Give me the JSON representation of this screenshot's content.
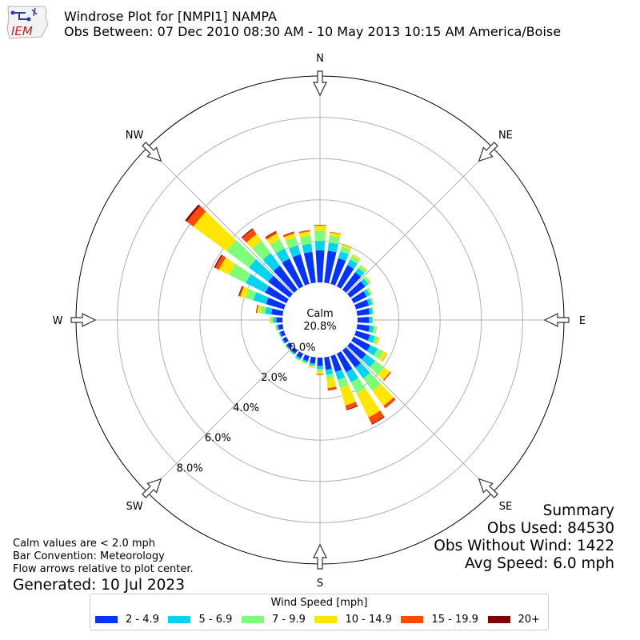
{
  "logo": {
    "text": "IEM"
  },
  "title_line1": "Windrose Plot for [NMPI1] NAMPA",
  "title_line2": "Obs Between: 07 Dec 2010 08:30 AM - 10 May 2013 10:15 AM America/Boise",
  "calm": {
    "label": "Calm",
    "value": "20.8%"
  },
  "summary": {
    "heading": "Summary",
    "obs_used": "Obs Used: 84530",
    "obs_without_wind": "Obs Without Wind: 1422",
    "avg_speed": "Avg Speed: 6.0 mph"
  },
  "notes": {
    "calm_note": "Calm values are < 2.0 mph",
    "bar_convention": "Bar Convention: Meteorology",
    "flow_arrows": "Flow arrows relative to plot center.",
    "generated": "Generated: 10 Jul 2023"
  },
  "legend": {
    "title": "Wind Speed [mph]",
    "items": [
      {
        "label": "2 - 4.9",
        "color": "#0433ff"
      },
      {
        "label": "5 - 6.9",
        "color": "#00d4f0"
      },
      {
        "label": "7 - 9.9",
        "color": "#7dfd7a"
      },
      {
        "label": "10 - 14.9",
        "color": "#ffe600"
      },
      {
        "label": "15 - 19.9",
        "color": "#ff4a00"
      },
      {
        "label": "20+",
        "color": "#800000"
      }
    ]
  },
  "chart_data": {
    "type": "windrose",
    "calm_percent": 20.8,
    "radial_ticks": [
      0,
      2,
      4,
      6,
      8
    ],
    "radial_tick_labels": [
      "0.0%",
      "2.0%",
      "4.0%",
      "6.0%",
      "8.0%"
    ],
    "radial_max": 10,
    "direction_labels": [
      "N",
      "NE",
      "E",
      "SE",
      "S",
      "SW",
      "W",
      "NW"
    ],
    "bin_width_degrees": 10,
    "directions": [
      0,
      10,
      20,
      30,
      40,
      50,
      60,
      70,
      80,
      90,
      100,
      110,
      120,
      130,
      140,
      150,
      160,
      170,
      180,
      190,
      200,
      210,
      220,
      230,
      240,
      250,
      260,
      270,
      280,
      290,
      300,
      310,
      320,
      330,
      340,
      350
    ],
    "series": [
      {
        "name": "2 - 4.9",
        "values": [
          1.55,
          1.55,
          1.3,
          1.15,
          1.05,
          0.9,
          0.7,
          0.65,
          0.6,
          0.55,
          0.6,
          0.7,
          0.9,
          0.95,
          1.05,
          1.0,
          0.8,
          0.6,
          0.4,
          0.3,
          0.25,
          0.25,
          0.2,
          0.2,
          0.2,
          0.2,
          0.22,
          0.3,
          0.55,
          0.9,
          1.15,
          1.3,
          1.45,
          1.5,
          1.5,
          1.5
        ]
      },
      {
        "name": "5 - 6.9",
        "values": [
          0.45,
          0.4,
          0.35,
          0.3,
          0.25,
          0.2,
          0.18,
          0.17,
          0.15,
          0.15,
          0.2,
          0.25,
          0.4,
          0.55,
          0.65,
          0.55,
          0.4,
          0.25,
          0.15,
          0.1,
          0.08,
          0.08,
          0.06,
          0.05,
          0.05,
          0.05,
          0.08,
          0.15,
          0.3,
          0.65,
          1.05,
          1.15,
          0.75,
          0.55,
          0.45,
          0.4
        ]
      },
      {
        "name": "7 - 9.9",
        "values": [
          0.5,
          0.35,
          0.25,
          0.2,
          0.15,
          0.1,
          0.08,
          0.07,
          0.05,
          0.05,
          0.1,
          0.15,
          0.3,
          0.55,
          0.75,
          0.6,
          0.4,
          0.2,
          0.1,
          0.05,
          0.05,
          0.05,
          0.04,
          0.03,
          0.03,
          0.03,
          0.05,
          0.1,
          0.25,
          0.4,
          0.9,
          1.35,
          0.75,
          0.5,
          0.4,
          0.4
        ]
      },
      {
        "name": "10 - 14.9",
        "values": [
          0.25,
          0.15,
          0.1,
          0.08,
          0.05,
          0.04,
          0.03,
          0.02,
          0.02,
          0.03,
          0.04,
          0.08,
          0.2,
          0.35,
          0.9,
          1.3,
          0.9,
          0.45,
          0.15,
          0.05,
          0.03,
          0.02,
          0.01,
          0.01,
          0.01,
          0.01,
          0.02,
          0.05,
          0.15,
          0.25,
          0.55,
          2.0,
          0.4,
          0.3,
          0.2,
          0.2
        ]
      },
      {
        "name": "15 - 19.9",
        "values": [
          0.03,
          0.03,
          0.02,
          0.01,
          0.01,
          0.01,
          0.01,
          0.0,
          0.0,
          0.0,
          0.01,
          0.01,
          0.02,
          0.05,
          0.12,
          0.35,
          0.2,
          0.1,
          0.03,
          0.01,
          0.0,
          0.0,
          0.0,
          0.0,
          0.0,
          0.0,
          0.0,
          0.01,
          0.03,
          0.06,
          0.2,
          0.4,
          0.3,
          0.1,
          0.08,
          0.05
        ]
      },
      {
        "name": "20+",
        "values": [
          0.01,
          0.0,
          0.0,
          0.0,
          0.0,
          0.0,
          0.0,
          0.0,
          0.0,
          0.0,
          0.0,
          0.0,
          0.0,
          0.01,
          0.02,
          0.04,
          0.04,
          0.02,
          0.01,
          0.0,
          0.0,
          0.0,
          0.0,
          0.0,
          0.0,
          0.0,
          0.0,
          0.0,
          0.02,
          0.04,
          0.06,
          0.1,
          0.05,
          0.04,
          0.02,
          0.01
        ]
      }
    ]
  }
}
